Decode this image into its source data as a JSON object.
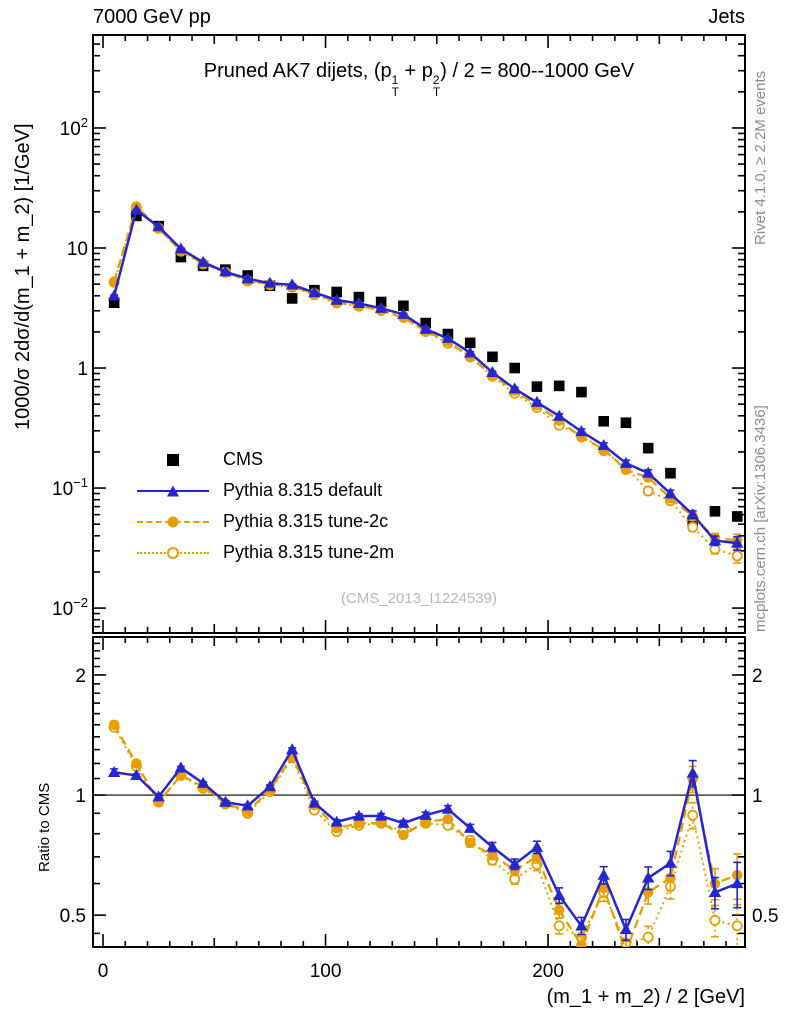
{
  "page": {
    "header_left": "7000 GeV pp",
    "header_right": "Jets",
    "credit_right_top": "Rivet 4.1.0, ≥ 2.2M events",
    "credit_right_bottom": "mcplots.cern.ch [arXiv:1306.3436]",
    "watermark": "(CMS_2013_I1224539)"
  },
  "title": {
    "pre": "Pruned AK7 dijets, (p",
    "sup1": "1",
    "sub1": "T",
    "mid": " + p",
    "sup2": "2",
    "sub2": "T",
    "post": ") / 2 = 800--1000 GeV"
  },
  "legend": {
    "items": [
      {
        "label": "CMS"
      },
      {
        "label": "Pythia 8.315 default"
      },
      {
        "label": "Pythia 8.315 tune-2c"
      },
      {
        "label": "Pythia 8.315 tune-2m"
      }
    ]
  },
  "colors": {
    "blue": "#2626d0",
    "orange": "#e69e00",
    "black": "#000000",
    "gray_text": "#8c8c8c",
    "watermark": "#b9b9b9"
  },
  "chart_data": {
    "type": "line",
    "title": "Pruned AK7 dijets, (pT^1 + pT^2) / 2 = 800--1000 GeV",
    "xlabel": "(m_1 + m_2) / 2 [GeV]",
    "ylabel_main": "1000/σ  2dσ/d(m_1 + m_2) [1/GeV]",
    "ylabel_ratio": "Ratio to CMS",
    "legend_position": "upper-left-inside",
    "grid": false,
    "x_range": [
      -4.5,
      288.5
    ],
    "y_range_main": [
      0.0062,
      595
    ],
    "y_range_ratio": [
      0.416,
      2.49
    ],
    "y_scale": "log",
    "x_bin_centers": [
      5,
      15,
      25,
      35,
      45,
      55,
      65,
      75,
      85,
      95,
      105,
      115,
      125,
      135,
      145,
      155,
      165,
      175,
      185,
      195,
      205,
      215,
      225,
      235,
      245,
      255,
      265,
      275,
      285
    ],
    "cms_values": [
      3.5,
      18.5,
      15.2,
      8.4,
      7.1,
      6.6,
      5.9,
      4.85,
      3.8,
      4.45,
      4.3,
      3.9,
      3.55,
      3.3,
      2.37,
      1.92,
      1.62,
      1.24,
      1.0,
      0.7,
      0.71,
      0.63,
      0.36,
      0.35,
      0.215,
      0.133,
      0.053,
      0.064,
      0.058
    ],
    "series": [
      {
        "name": "Pythia 8.315 default",
        "marker": "triangle",
        "line": "solid",
        "ratio_to_cms": [
          1.14,
          1.12,
          0.99,
          1.17,
          1.07,
          0.96,
          0.94,
          1.05,
          1.3,
          0.955,
          0.856,
          0.886,
          0.886,
          0.85,
          0.89,
          0.922,
          0.826,
          0.741,
          0.671,
          0.74,
          0.56,
          0.47,
          0.63,
          0.46,
          0.62,
          0.675,
          1.135,
          0.57,
          0.6
        ]
      },
      {
        "name": "Pythia 8.315 tune-2c",
        "marker": "circle",
        "line": "dashed",
        "ratio_to_cms": [
          1.5,
          1.2,
          0.96,
          1.12,
          1.05,
          0.955,
          0.91,
          1.03,
          1.25,
          0.944,
          0.826,
          0.85,
          0.85,
          0.794,
          0.857,
          0.87,
          0.758,
          0.707,
          0.648,
          0.7,
          0.515,
          0.42,
          0.585,
          0.405,
          0.57,
          0.62,
          1.097,
          0.6,
          0.63
        ]
      },
      {
        "name": "Pythia 8.315 tune-2m",
        "marker": "open-circle",
        "line": "dotted",
        "ratio_to_cms": [
          1.48,
          1.18,
          0.96,
          1.12,
          1.04,
          0.95,
          0.9,
          1.02,
          1.24,
          0.917,
          0.81,
          0.84,
          0.85,
          0.81,
          0.85,
          0.84,
          0.77,
          0.687,
          0.616,
          0.67,
          0.47,
          0.44,
          0.57,
          0.425,
          0.44,
          0.59,
          0.89,
          0.485,
          0.47
        ]
      }
    ],
    "mc_frac_err": [
      0.02,
      0.008,
      0.008,
      0.008,
      0.008,
      0.008,
      0.009,
      0.009,
      0.01,
      0.01,
      0.012,
      0.013,
      0.014,
      0.016,
      0.018,
      0.02,
      0.022,
      0.026,
      0.03,
      0.035,
      0.045,
      0.05,
      0.05,
      0.06,
      0.065,
      0.07,
      0.075,
      0.09,
      0.13
    ],
    "axes": {
      "x_tick_labels": [
        {
          "v": 0,
          "t": "0"
        },
        {
          "v": 100,
          "t": "100"
        },
        {
          "v": 200,
          "t": "200"
        }
      ],
      "y_main_tick_labels": [
        {
          "v": 100,
          "base": "10",
          "exp": "2"
        },
        {
          "v": 10,
          "base": "10",
          "exp": ""
        },
        {
          "v": 1,
          "base": "1",
          "exp": ""
        },
        {
          "v": 0.1,
          "base": "10",
          "exp": "−1"
        },
        {
          "v": 0.01,
          "base": "10",
          "exp": "−2"
        }
      ],
      "y_ratio_tick_labels": [
        {
          "v": 2,
          "t": "2"
        },
        {
          "v": 1,
          "t": "1"
        },
        {
          "v": 0.5,
          "t": "0.5"
        }
      ]
    }
  }
}
